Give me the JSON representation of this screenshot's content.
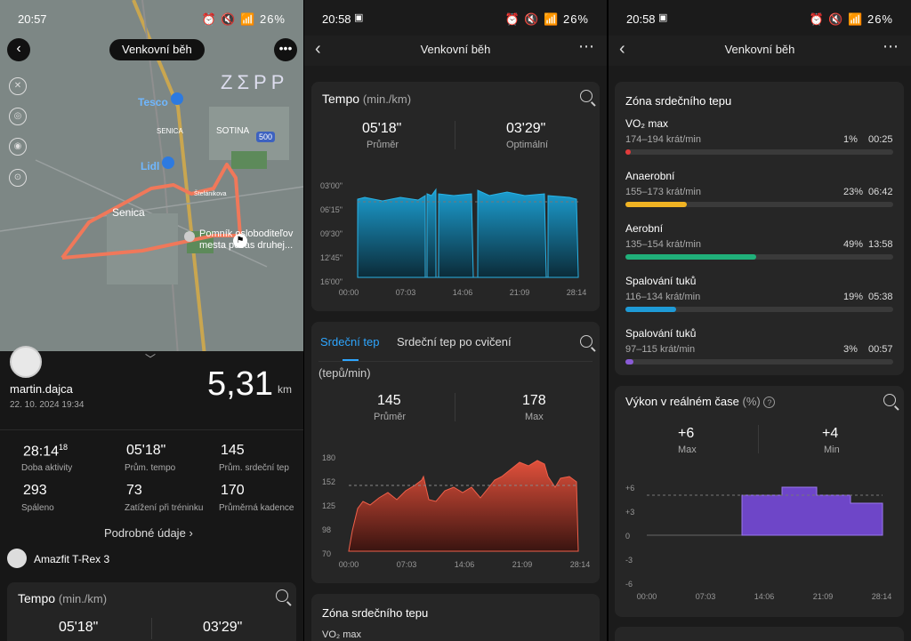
{
  "status": {
    "p1_time": "20:57",
    "p2_time": "20:58",
    "p3_time": "20:58",
    "icons": "⏰ 🔇 📶 ",
    "battery": "26%"
  },
  "title": "Venkovní běh",
  "map": {
    "brand": "ZΣPP",
    "tesco": "Tesco",
    "lidl": "Lidl",
    "senica": "Senica",
    "senica_small": "SENICA",
    "sotina": "SOTINA",
    "road": "500",
    "borovce": "Štefánikova",
    "poi": "Pomník osloboditeľov mesta počas druhej...",
    "icons": [
      "gps-off-icon",
      "layers-icon",
      "eye-icon",
      "locate-icon"
    ]
  },
  "summary": {
    "user": "martin.dajca",
    "date": "22. 10. 2024 19:34",
    "distance": "5,31",
    "unit": "km",
    "stats": [
      {
        "value": "28:14",
        "sup": "18",
        "label": "Doba aktivity"
      },
      {
        "value": "05'18\"",
        "sup": "",
        "label": "Prům. tempo"
      },
      {
        "value": "145",
        "sup": "",
        "label": "Prům. srdeční tep"
      },
      {
        "value": "293",
        "sup": "",
        "label": "Spáleno"
      },
      {
        "value": "73",
        "sup": "",
        "label": "Zatížení při tréninku"
      },
      {
        "value": "170",
        "sup": "",
        "label": "Průměrná kadence"
      }
    ],
    "details": "Podrobné údaje",
    "device": "Amazfit T-Rex 3"
  },
  "pace": {
    "title": "Tempo",
    "unit": "(min./km)",
    "avg": "05'18\"",
    "avg_label": "Průměr",
    "opt": "03'29\"",
    "opt_label": "Optimální",
    "ylabels": [
      "03'00\"",
      "06'15\"",
      "09'30\"",
      "12'45\"",
      "16'00\""
    ],
    "xlabels": [
      "00:00",
      "07:03",
      "14:06",
      "21:09",
      "28:14"
    ]
  },
  "hr": {
    "tab1": "Srdeční tep",
    "tab2": "Srdeční tep po cvičení",
    "unit": "(tepů/min)",
    "avg": "145",
    "avg_label": "Průměr",
    "max": "178",
    "max_label": "Max",
    "ylabels": [
      "180",
      "152",
      "125",
      "98",
      "70"
    ],
    "xlabels": [
      "00:00",
      "07:03",
      "14:06",
      "21:09",
      "28:14"
    ]
  },
  "zones": {
    "title": "Zóna srdečního tepu",
    "items": [
      {
        "name": "VO₂ max",
        "range": "174–194 krát/min",
        "pct": "1%",
        "time": "00:25",
        "fill": 0.01,
        "color": "#e23b3b"
      },
      {
        "name": "Anaerobní",
        "range": "155–173 krát/min",
        "pct": "23%",
        "time": "06:42",
        "fill": 0.23,
        "color": "#f0b323"
      },
      {
        "name": "Aerobní",
        "range": "135–154 krát/min",
        "pct": "49%",
        "time": "13:58",
        "fill": 0.49,
        "color": "#20b07a"
      },
      {
        "name": "Spalování tuků",
        "range": "116–134 krát/min",
        "pct": "19%",
        "time": "05:38",
        "fill": 0.19,
        "color": "#1e9ad6"
      },
      {
        "name": "Spalování tuků",
        "range": "97–115 krát/min",
        "pct": "3%",
        "time": "00:57",
        "fill": 0.03,
        "color": "#8a5bd6"
      }
    ]
  },
  "power": {
    "title": "Výkon v reálném čase",
    "unit": "(%)",
    "max": "+6",
    "max_label": "Max",
    "min": "+4",
    "min_label": "Min",
    "ylabels": [
      "+6",
      "+3",
      "0",
      "-3",
      "-6"
    ],
    "xlabels": [
      "00:00",
      "07:03",
      "14:06",
      "21:09",
      "28:14"
    ]
  },
  "p1pace": {
    "title": "Tempo",
    "unit": "(min./km)",
    "avg": "05'18\"",
    "opt": "03'29\""
  },
  "p2zone": {
    "title": "Zóna srdečního tepu",
    "first": "VO₂ max"
  }
}
